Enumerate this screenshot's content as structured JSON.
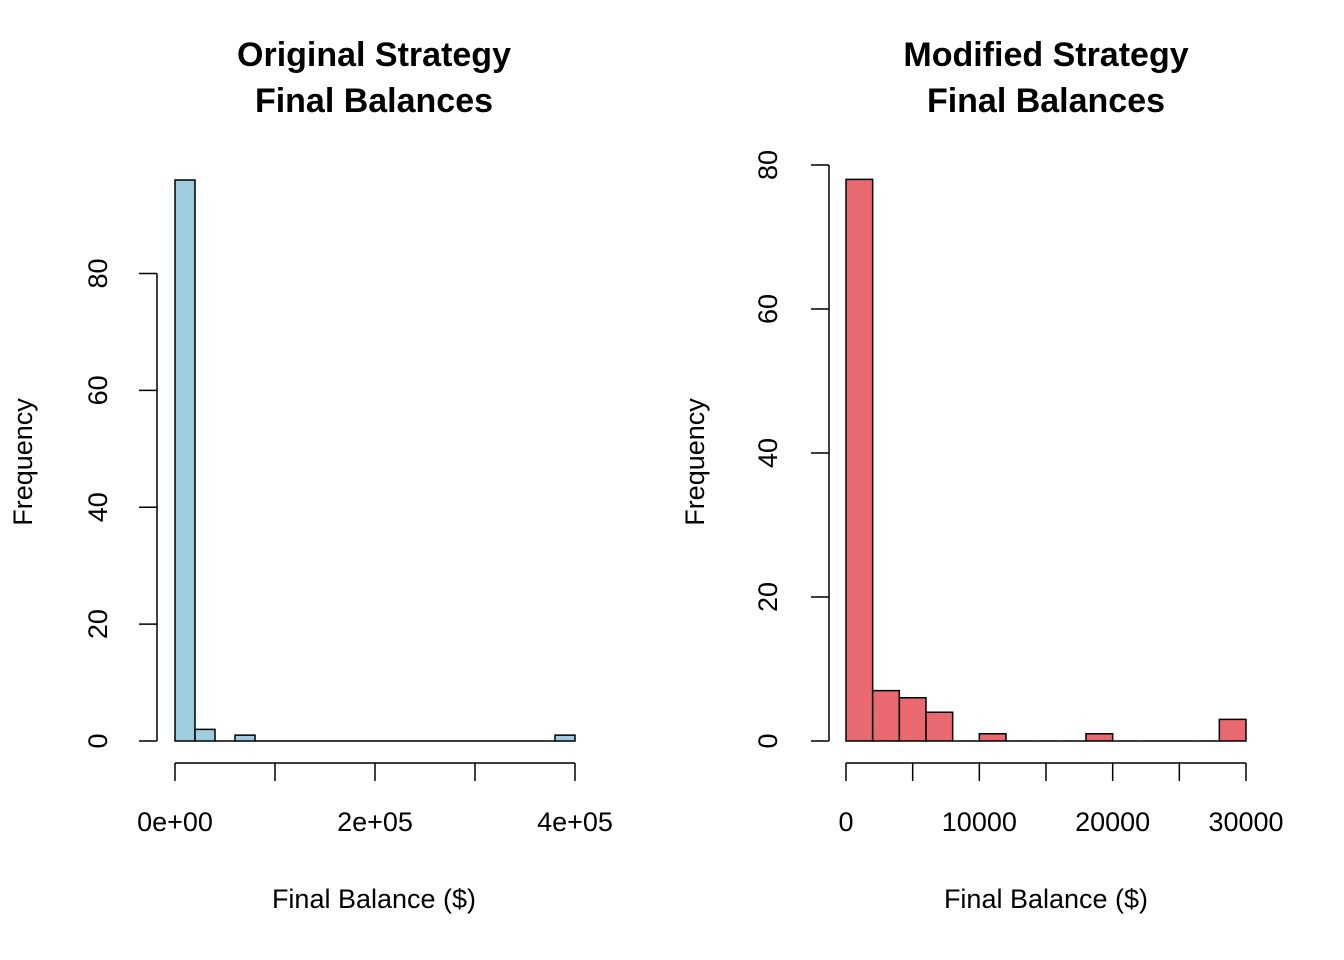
{
  "chart_data": [
    {
      "type": "histogram",
      "title": [
        "Original Strategy",
        "Final Balances"
      ],
      "x_label": "Final Balance ($)",
      "y_label": "Frequency",
      "color": "#9fcde0",
      "bins": [
        0,
        20000,
        40000,
        60000,
        80000,
        100000,
        120000,
        140000,
        160000,
        180000,
        200000,
        220000,
        240000,
        260000,
        280000,
        300000,
        320000,
        340000,
        360000,
        380000,
        400000
      ],
      "counts": [
        96,
        2,
        0,
        1,
        0,
        0,
        0,
        0,
        0,
        0,
        0,
        0,
        0,
        0,
        0,
        0,
        0,
        0,
        0,
        1
      ],
      "xlim": [
        0,
        400000
      ],
      "xticks": [
        {
          "value": 0,
          "label": "0e+00"
        },
        {
          "value": 100000,
          "label": null
        },
        {
          "value": 200000,
          "label": "2e+05"
        },
        {
          "value": 300000,
          "label": null
        },
        {
          "value": 400000,
          "label": "4e+05"
        }
      ],
      "ylim": [
        0,
        96
      ],
      "yticks": [
        0,
        20,
        40,
        60,
        80
      ]
    },
    {
      "type": "histogram",
      "title": [
        "Modified Strategy",
        "Final Balances"
      ],
      "x_label": "Final Balance ($)",
      "y_label": "Frequency",
      "color": "#e8696f",
      "bins": [
        0,
        2000,
        4000,
        6000,
        8000,
        10000,
        12000,
        14000,
        16000,
        18000,
        20000,
        22000,
        24000,
        26000,
        28000,
        30000
      ],
      "counts": [
        78,
        7,
        6,
        4,
        0,
        1,
        0,
        0,
        0,
        1,
        0,
        0,
        0,
        0,
        3
      ],
      "xlim": [
        0,
        30000
      ],
      "xticks": [
        0,
        {
          "value": 5000,
          "label": null
        },
        10000,
        {
          "value": 15000,
          "label": null
        },
        20000,
        {
          "value": 25000,
          "label": null
        },
        30000
      ],
      "ylim": [
        0,
        80
      ],
      "yticks": [
        0,
        20,
        40,
        60,
        80
      ]
    }
  ]
}
